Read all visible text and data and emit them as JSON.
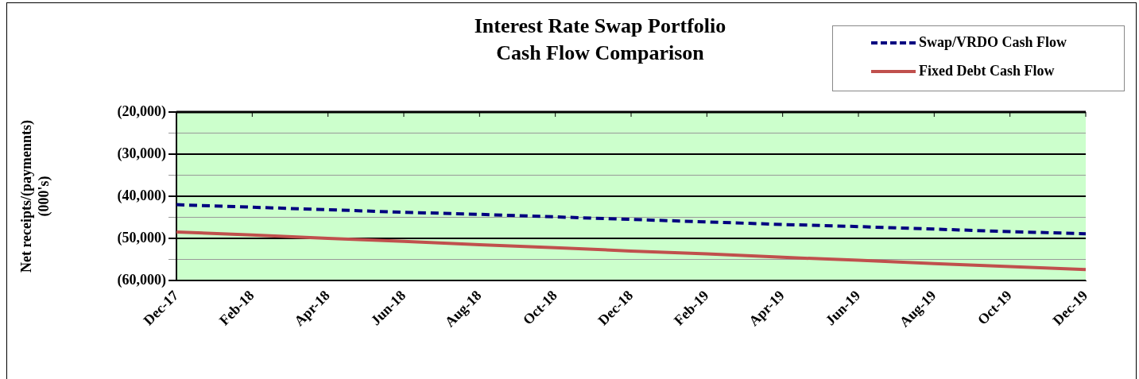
{
  "chart_data": {
    "type": "line",
    "title": "Interest Rate Swap Portfolio\nCash Flow Comparison",
    "ylabel": "Net receipts/(paymennts)\n(000's)",
    "categories": [
      "Dec-17",
      "Feb-18",
      "Apr-18",
      "Jun-18",
      "Aug-18",
      "Oct-18",
      "Dec-18",
      "Feb-19",
      "Apr-19",
      "Jun-19",
      "Aug-19",
      "Oct-19",
      "Dec-19"
    ],
    "series": [
      {
        "name": "Swap/VRDO Cash Flow",
        "color": "#000080",
        "line_style": "dashed",
        "values": [
          -42000,
          -42600,
          -43200,
          -43800,
          -44300,
          -44900,
          -45500,
          -46100,
          -46700,
          -47200,
          -47800,
          -48400,
          -48900
        ]
      },
      {
        "name": "Fixed Debt Cash Flow",
        "color": "#c0504d",
        "line_style": "solid",
        "values": [
          -48500,
          -49200,
          -50000,
          -50700,
          -51500,
          -52200,
          -53000,
          -53700,
          -54500,
          -55200,
          -56000,
          -56700,
          -57400
        ]
      }
    ],
    "ylim": [
      -60000,
      -20000
    ],
    "yticks": [
      {
        "value": -60000,
        "label": "(60,000)"
      },
      {
        "value": -55000,
        "label": null
      },
      {
        "value": -50000,
        "label": "(50,000)"
      },
      {
        "value": -45000,
        "label": null
      },
      {
        "value": -40000,
        "label": "(40,000)"
      },
      {
        "value": -35000,
        "label": null
      },
      {
        "value": -30000,
        "label": "(30,000)"
      },
      {
        "value": -25000,
        "label": null
      },
      {
        "value": -20000,
        "label": "(20,000)"
      }
    ],
    "grid": "y",
    "legend": "top right",
    "marker": "none"
  }
}
